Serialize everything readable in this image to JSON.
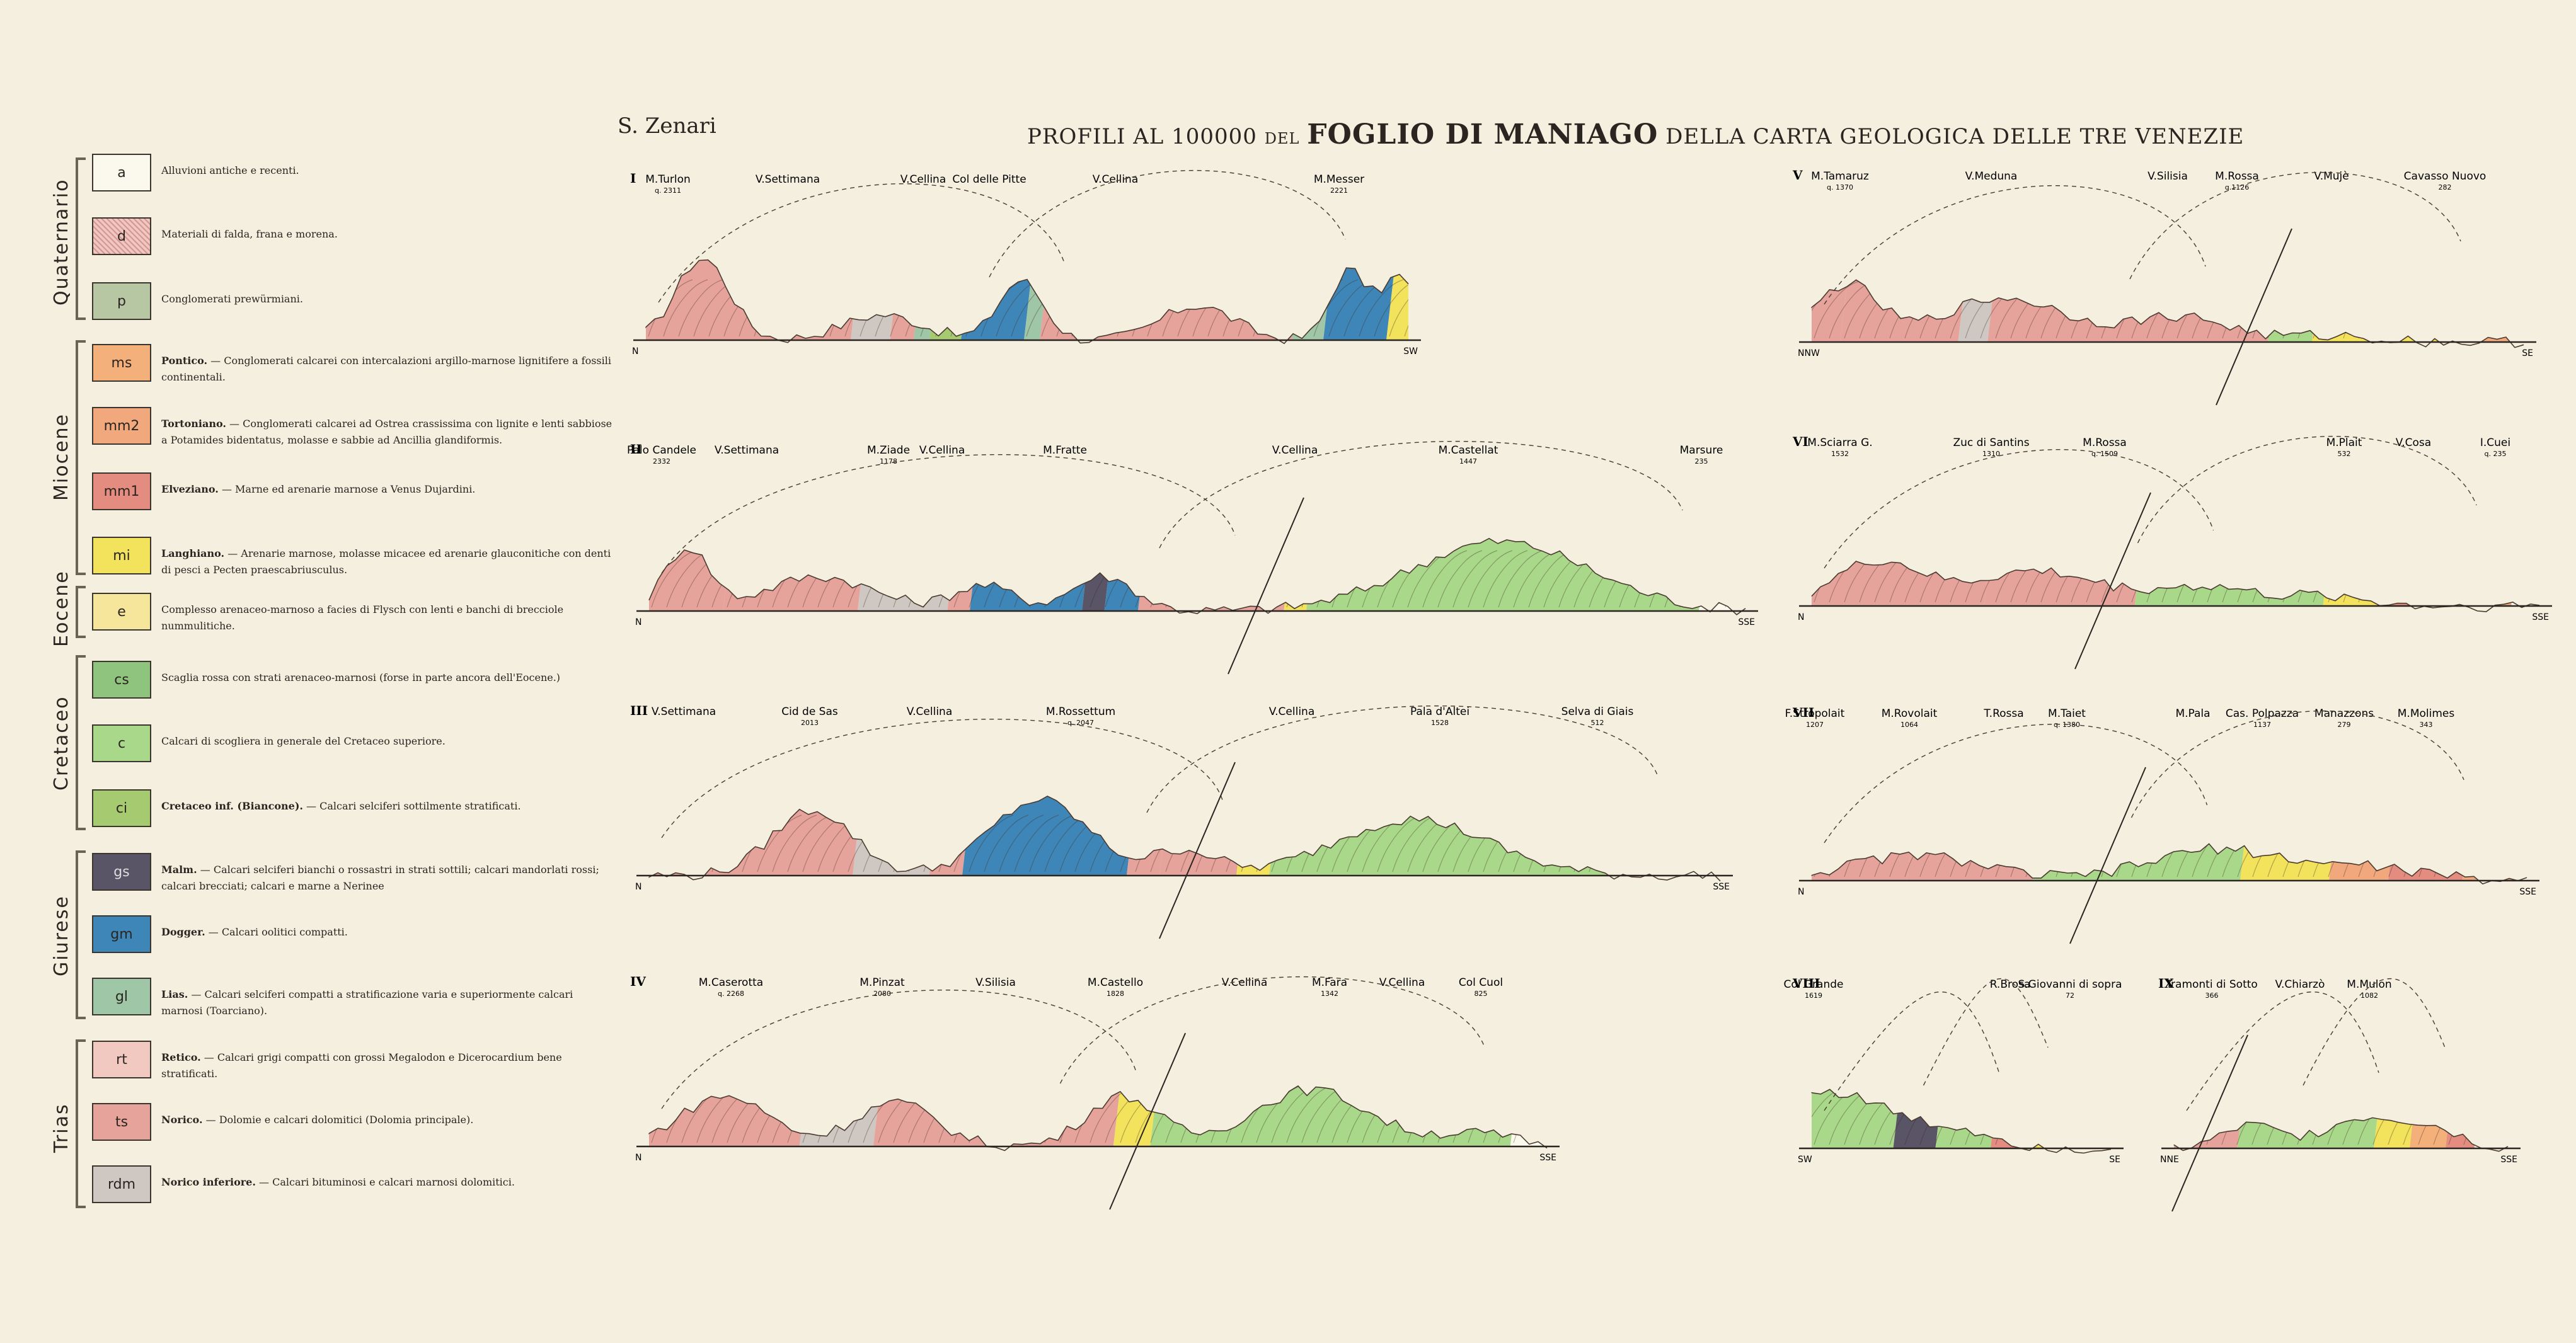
{
  "author": "S. Zenari",
  "title": {
    "part1": "PROFILI AL 100000 del",
    "part2": "FOGLIO DI MANIAGO",
    "part3": "DELLA CARTA GEOLOGICA DELLE TRE VENEZIE"
  },
  "colors": {
    "paper": "#f4efdf",
    "a": "#fbf8ee",
    "d": "#f0c7c0",
    "p": "#b7c7a4",
    "ms": "#f4b07a",
    "mm2": "#f1a87c",
    "mm1": "#e58c80",
    "mi": "#f2e25c",
    "e": "#f5e69c",
    "cs": "#8fc47e",
    "c": "#a9d88a",
    "ci": "#a6ca70",
    "gs": "#5a5467",
    "gm": "#3f86b8",
    "gl": "#9fc6a6",
    "rt": "#f2c9c0",
    "ts": "#e6a39b",
    "rdm": "#cfc7c2"
  },
  "legend": {
    "eras": [
      {
        "name": "Quaternario"
      },
      {
        "name": "Miocene"
      },
      {
        "name": "Eocene"
      },
      {
        "name": "Cretaceo"
      },
      {
        "name": "Giurese"
      },
      {
        "name": "Trias"
      }
    ],
    "units": [
      {
        "code": "a",
        "bold": "",
        "text": "Alluvioni antiche e recenti."
      },
      {
        "code": "d",
        "bold": "",
        "text": "Materiali di falda, frana e morena."
      },
      {
        "code": "p",
        "bold": "",
        "text": "Conglomerati prewürmiani."
      },
      {
        "code": "ms",
        "bold": "Pontico.",
        "text": " — Conglomerati calcarei con intercalazioni argillo-marnose lignitifere a fossili continentali."
      },
      {
        "code": "mm2",
        "bold": "Tortoniano.",
        "text": " — Conglomerati calcarei ad Ostrea crassissima con lignite e lenti sabbiose a Potamides bidentatus, molasse e sabbie ad Ancillia glandiformis."
      },
      {
        "code": "mm1",
        "bold": "Elveziano.",
        "text": " — Marne ed arenarie marnose a Venus Dujardini."
      },
      {
        "code": "mi",
        "bold": "Langhiano.",
        "text": " — Arenarie marnose, molasse micacee ed arenarie glauconitiche con denti di pesci a Pecten praescabriusculus."
      },
      {
        "code": "e",
        "bold": "",
        "text": "Complesso arenaceo-marnoso a facies di Flysch con lenti e banchi di brecciole nummulitiche."
      },
      {
        "code": "cs",
        "bold": "",
        "text": "Scaglia rossa con strati arenaceo-marnosi (forse in parte ancora dell'Eocene.)"
      },
      {
        "code": "c",
        "bold": "",
        "text": "Calcari di scogliera in generale del Cretaceo superiore."
      },
      {
        "code": "ci",
        "bold": "Cretaceo inf. (Biancone).",
        "text": " — Calcari selciferi sottilmente stratificati."
      },
      {
        "code": "gs",
        "bold": "Malm.",
        "text": " — Calcari selciferi bianchi o rossastri in strati sottili; calcari mandorlati rossi; calcari brecciati; calcari e marne a Nerinee"
      },
      {
        "code": "gm",
        "bold": "Dogger.",
        "text": " — Calcari oolitici compatti."
      },
      {
        "code": "gl",
        "bold": "Lias.",
        "text": " — Calcari selciferi compatti a stratificazione varia e superiormente calcari marnosi (Toarciano)."
      },
      {
        "code": "rt",
        "bold": "Retico.",
        "text": " — Calcari grigi compatti con grossi Megalodon e Dicerocardium bene stratificati."
      },
      {
        "code": "ts",
        "bold": "Norico.",
        "text": " — Dolomie e calcari dolomitici (Dolomia principale)."
      },
      {
        "code": "rdm",
        "bold": "Norico inferiore.",
        "text": " — Calcari bituminosi e calcari marnosi dolomitici."
      }
    ]
  },
  "profiles": [
    {
      "id": "I",
      "left_dir": "N",
      "right_dir": "SW",
      "places": [
        "M.Turlon",
        "V.Settimana",
        "V.Cellina",
        "Col delle Pitte",
        "V.Cellina",
        "M.Messer"
      ],
      "heights": [
        "q. 2311",
        "",
        "",
        "",
        "",
        "2221"
      ]
    },
    {
      "id": "II",
      "left_dir": "N",
      "right_dir": "SSE",
      "places": [
        "Palo Candele",
        "V.Settimana",
        "M.Ziade",
        "V.Cellina",
        "M.Fratte",
        "V.Cellina",
        "M.Castellat",
        "Marsure"
      ],
      "heights": [
        "2332",
        "",
        "1178",
        "",
        "",
        "",
        "1447",
        "235"
      ]
    },
    {
      "id": "III",
      "left_dir": "N",
      "right_dir": "SSE",
      "places": [
        "V.Settimana",
        "Cid de Sas",
        "V.Cellina",
        "M.Rossettum",
        "V.Cellina",
        "Pala d'Altei",
        "Selva di Giais"
      ],
      "heights": [
        "",
        "2013",
        "",
        "q. 2047",
        "",
        "1528",
        "512"
      ]
    },
    {
      "id": "IV",
      "left_dir": "N",
      "right_dir": "SSE",
      "places": [
        "M.Caserotta",
        "M.Pinzat",
        "V.Silisia",
        "M.Castello",
        "V.Cellina",
        "M.Fara",
        "V.Cellina",
        "Col Cuol"
      ],
      "heights": [
        "q. 2268",
        "2080",
        "",
        "1828",
        "",
        "1342",
        "",
        "825"
      ]
    },
    {
      "id": "V",
      "left_dir": "NNW",
      "right_dir": "SE",
      "places": [
        "M.Tamaruz",
        "V.Meduna",
        "V.Silisia",
        "M.Rossa",
        "V.Mujè",
        "Cavasso Nuovo"
      ],
      "heights": [
        "q. 1370",
        "",
        "",
        "q.1126",
        "",
        "282"
      ]
    },
    {
      "id": "VI",
      "left_dir": "N",
      "right_dir": "SSE",
      "places": [
        "M.Sciarra G.",
        "Zuc di Santins",
        "M.Rossa",
        "M.Plait",
        "V.Cosa",
        "I.Cuei"
      ],
      "heights": [
        "1532",
        "1310",
        "q. 1509",
        "532",
        "",
        "q. 235"
      ]
    },
    {
      "id": "VII",
      "left_dir": "N",
      "right_dir": "SSE",
      "places": [
        "F.Stropolait",
        "M.Rovolait",
        "T.Rossa",
        "M.Taiet",
        "M.Pala",
        "Cas. Polpazza",
        "Manazzons",
        "M.Molimes"
      ],
      "heights": [
        "1207",
        "1064",
        "",
        "q. 1380",
        "",
        "1137",
        "279",
        "343"
      ]
    },
    {
      "id": "VIII",
      "left_dir": "SW",
      "right_dir": "SE",
      "places": [
        "Col Grande",
        "R.Brosa",
        "S.Giovanni di sopra"
      ],
      "heights": [
        "1619",
        "",
        "72"
      ]
    },
    {
      "id": "IX",
      "left_dir": "NNE",
      "right_dir": "SSE",
      "places": [
        "Tramonti di Sotto",
        "V.Chiarzò",
        "M.Mulon"
      ],
      "heights": [
        "366",
        "",
        "1082"
      ]
    }
  ]
}
